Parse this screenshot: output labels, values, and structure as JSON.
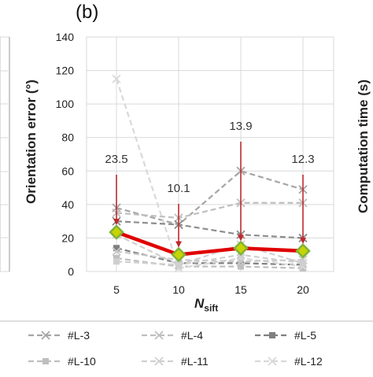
{
  "panel_label": "(b)",
  "right_axis_label": "Computation time (s)",
  "colors": {
    "mean": "#e00000",
    "mean_marker_fill": "#c8d400",
    "mean_marker_edge": "#7fb33a",
    "arrow": "#c0282c",
    "series_gray": "#a6a6a6",
    "series_dark": "#7f7f7f",
    "series_light": "#d0d0d0"
  },
  "chart_data": {
    "type": "line",
    "xlabel_main": "N",
    "xlabel_sub": "sift",
    "ylabel": "Orientation error (°)",
    "categories": [
      "5",
      "10",
      "15",
      "20"
    ],
    "ylim": [
      0,
      140
    ],
    "yticks": [
      "0",
      "20",
      "40",
      "60",
      "80",
      "100",
      "120",
      "140"
    ],
    "grid": true,
    "mean_series": {
      "values": [
        23.5,
        10.1,
        13.9,
        12.3
      ]
    },
    "annotations": [
      {
        "category": "5",
        "text": "23.5",
        "value": 23.5
      },
      {
        "category": "10",
        "text": "10.1",
        "value": 10.1
      },
      {
        "category": "15",
        "text": "13.9",
        "value": 13.9
      },
      {
        "category": "20",
        "text": "12.3",
        "value": 12.3
      }
    ],
    "series": [
      {
        "name": "#L-3",
        "values": [
          38,
          28,
          60,
          49
        ],
        "marker": "x",
        "color": "#a6a6a6"
      },
      {
        "name": "#L-4",
        "values": [
          35,
          32,
          41,
          41
        ],
        "marker": "x",
        "color": "#bfbfbf"
      },
      {
        "name": "#L-5",
        "values": [
          14,
          5,
          5,
          4
        ],
        "marker": "square",
        "color": "#7f7f7f"
      },
      {
        "name": "#L-10",
        "values": [
          8,
          3,
          3,
          2
        ],
        "marker": "square",
        "color": "#bfbfbf"
      },
      {
        "name": "#L-11",
        "values": [
          22,
          4,
          16,
          5
        ],
        "marker": "x",
        "color": "#d0d0d0"
      },
      {
        "name": "#L-12",
        "values": [
          115,
          2,
          8,
          3
        ],
        "marker": "x",
        "color": "#d9d9d9"
      },
      {
        "name": "",
        "values": [
          30,
          28,
          22,
          20
        ],
        "marker": "x",
        "color": "#8c8c8c"
      },
      {
        "name": "",
        "values": [
          12,
          7,
          6,
          7
        ],
        "marker": "x",
        "color": "#c9c9c9"
      },
      {
        "name": "",
        "values": [
          6,
          4,
          10,
          5
        ],
        "marker": "square",
        "color": "#cfcfcf"
      }
    ],
    "legend": {
      "placement": "bottom"
    }
  }
}
